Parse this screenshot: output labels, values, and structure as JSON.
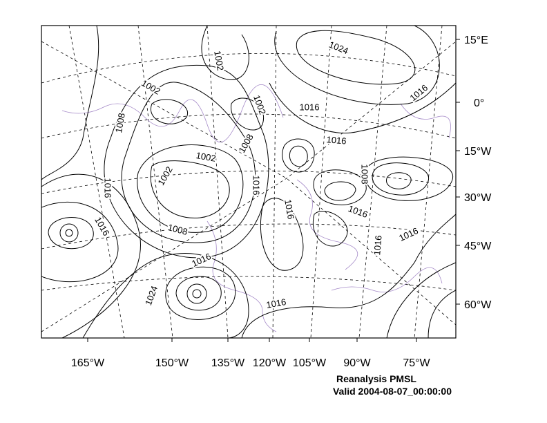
{
  "title": "Reanalysis PMSL",
  "subtitle": "Valid 2004-08-07_00:00:00",
  "lat_labels": [
    "15°E",
    "0°",
    "15°W",
    "30°W",
    "45°W",
    "60°W"
  ],
  "lon_labels": [
    "165°W",
    "150°W",
    "135°W",
    "120°W",
    "105°W",
    "90°W",
    "75°W"
  ],
  "contour_labels": [
    "1002",
    "1024",
    "1002",
    "1016",
    "1002",
    "1016",
    "1008",
    "1016",
    "1008",
    "1002",
    "1008",
    "1002",
    "1016",
    "1016",
    "1016",
    "1016",
    "1016",
    "1008",
    "1016",
    "1016",
    "1016",
    "1024",
    "1016"
  ]
}
